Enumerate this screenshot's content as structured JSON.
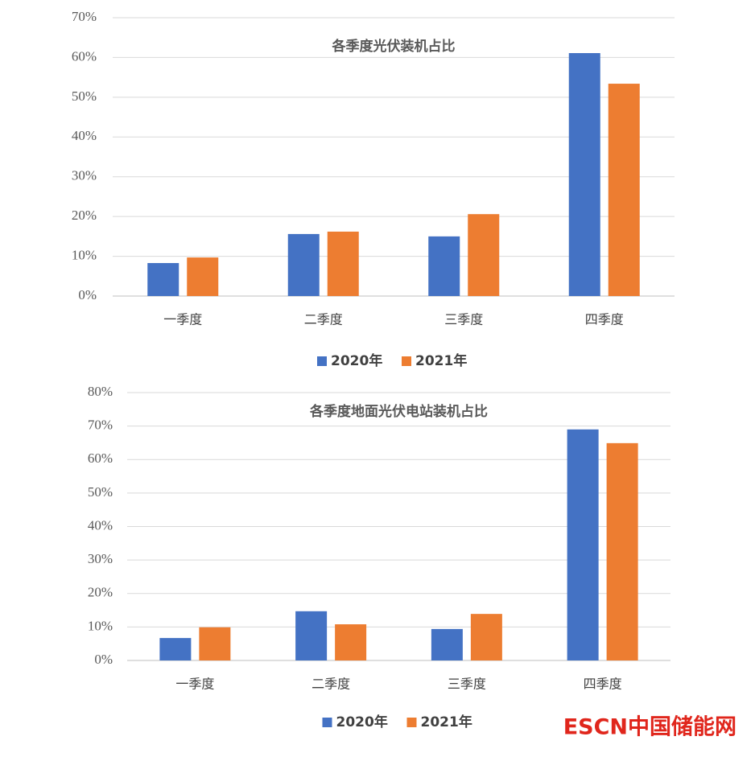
{
  "chart_data": [
    {
      "type": "bar",
      "title": "各季度光伏装机占比",
      "categories": [
        "一季度",
        "二季度",
        "三季度",
        "四季度"
      ],
      "series": [
        {
          "name": "2020年",
          "color": "#4472c4",
          "values": [
            8.3,
            15.6,
            15.0,
            61.1
          ]
        },
        {
          "name": "2021年",
          "color": "#ed7d31",
          "values": [
            9.7,
            16.2,
            20.6,
            53.4
          ]
        }
      ],
      "ylim": [
        0,
        70
      ],
      "yticks": [
        {
          "value": 0,
          "label": "0%"
        },
        {
          "value": 10,
          "label": "10%"
        },
        {
          "value": 20,
          "label": "20%"
        },
        {
          "value": 30,
          "label": "30%"
        },
        {
          "value": 40,
          "label": "40%"
        },
        {
          "value": 50,
          "label": "50%"
        },
        {
          "value": 60,
          "label": "60%"
        },
        {
          "value": 70,
          "label": "70%"
        }
      ],
      "grid": true,
      "legend": "bottom"
    },
    {
      "type": "bar",
      "title": "各季度地面光伏电站装机占比",
      "categories": [
        "一季度",
        "二季度",
        "三季度",
        "四季度"
      ],
      "series": [
        {
          "name": "2020年",
          "color": "#4472c4",
          "values": [
            6.7,
            14.7,
            9.4,
            69.0
          ]
        },
        {
          "name": "2021年",
          "color": "#ed7d31",
          "values": [
            9.9,
            10.8,
            13.9,
            64.9
          ]
        }
      ],
      "ylim": [
        0,
        80
      ],
      "yticks": [
        {
          "value": 0,
          "label": "0%"
        },
        {
          "value": 10,
          "label": "10%"
        },
        {
          "value": 20,
          "label": "20%"
        },
        {
          "value": 30,
          "label": "30%"
        },
        {
          "value": 40,
          "label": "40%"
        },
        {
          "value": 50,
          "label": "50%"
        },
        {
          "value": 60,
          "label": "60%"
        },
        {
          "value": 70,
          "label": "70%"
        },
        {
          "value": 80,
          "label": "80%"
        }
      ],
      "grid": true,
      "legend": "bottom"
    }
  ],
  "watermark": "ESCN中国储能网"
}
